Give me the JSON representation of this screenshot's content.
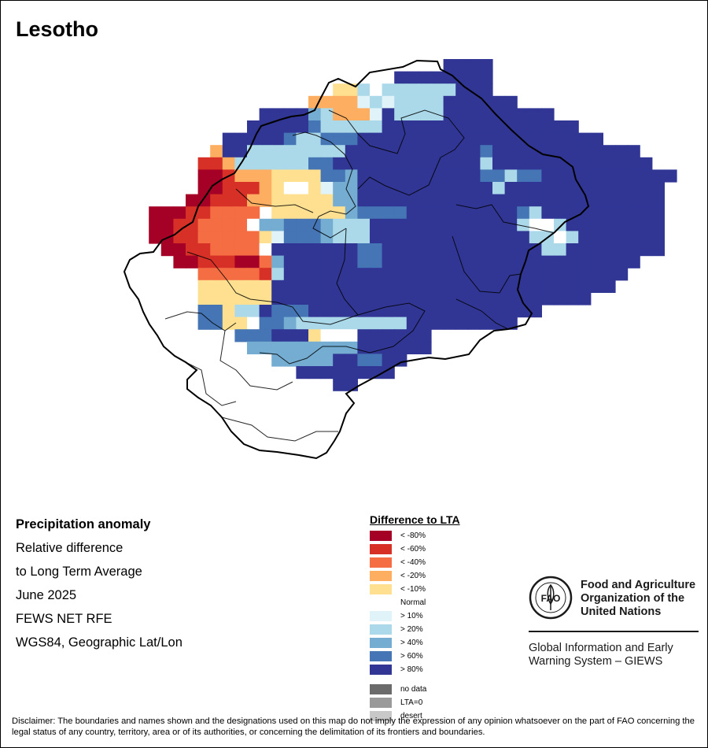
{
  "map": {
    "title": "Lesotho",
    "info_lines": [
      "Precipitation anomaly",
      "Relative difference",
      "to Long Term Average",
      "June 2025",
      "FEWS NET RFE",
      "WGS84, Geographic Lat/Lon"
    ]
  },
  "legend": {
    "title": "Difference to LTA",
    "items": [
      {
        "label": "< -80%",
        "color": "#a50026"
      },
      {
        "label": "< -60%",
        "color": "#d73027"
      },
      {
        "label": "< -40%",
        "color": "#f46d43"
      },
      {
        "label": "< -20%",
        "color": "#fdae61"
      },
      {
        "label": "< -10%",
        "color": "#fee090"
      },
      {
        "label": "Normal",
        "color": "#ffffff"
      },
      {
        "label": "> 10%",
        "color": "#e0f3f8"
      },
      {
        "label": "> 20%",
        "color": "#abd9e9"
      },
      {
        "label": "> 40%",
        "color": "#74add1"
      },
      {
        "label": "> 60%",
        "color": "#4575b4"
      },
      {
        "label": "> 80%",
        "color": "#313695"
      }
    ],
    "extra": [
      {
        "label": "no data",
        "color": "#6b6b6b"
      },
      {
        "label": "LTA=0",
        "color": "#9a9a9a"
      },
      {
        "label": "desert",
        "color": "#c8c8c8"
      }
    ]
  },
  "org": {
    "logo_text": "FAO",
    "name_lines": [
      "Food and Agriculture",
      "Organization of the",
      "United Nations"
    ],
    "system_lines": [
      "Global Information and Early",
      "Warning System – GIEWS"
    ]
  },
  "disclaimer": "Disclaimer: The boundaries and names shown and the designations used on this map do not imply the expression of any opinion whatsoever on the part of FAO concerning the legal status of any country, territory, area or of its authorities, or concerning the delimitation of its frontiers and boundaries."
}
